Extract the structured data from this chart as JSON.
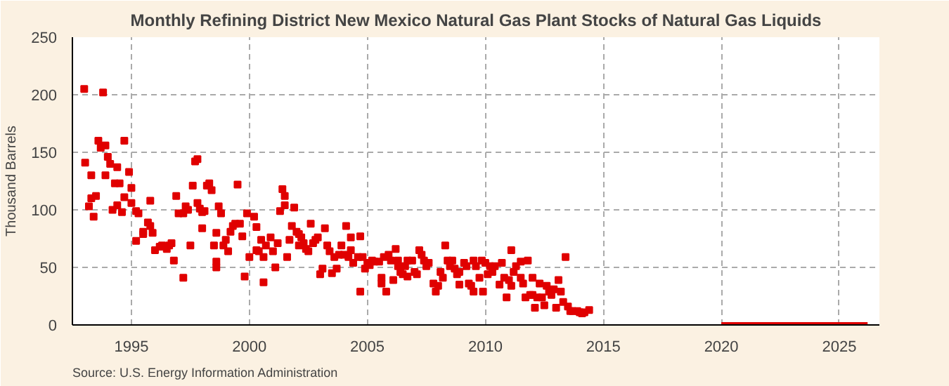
{
  "chart_data": {
    "type": "scatter",
    "title": "Monthly Refining District New Mexico Natural Gas Plant Stocks of Natural Gas Liquids",
    "ylabel": "Thousand Barrels",
    "annotations": [
      "Source: U.S. Energy Information Administration"
    ],
    "grid": true,
    "xlim": [
      1992.5,
      2026.7
    ],
    "xticks": [
      1995,
      2000,
      2005,
      2010,
      2015,
      2020,
      2025
    ],
    "ylim": [
      0,
      250
    ],
    "yticks": [
      0,
      50,
      100,
      150,
      200,
      250
    ],
    "series": [
      {
        "marker": "square",
        "color": "#e00000",
        "x": [
          1993.0,
          1993.04,
          1993.2,
          1993.3,
          1993.3,
          1993.4,
          1993.5,
          1993.6,
          1993.7,
          1993.8,
          1993.9,
          1993.9,
          1994.0,
          1994.1,
          1994.2,
          1994.3,
          1994.4,
          1994.4,
          1994.5,
          1994.6,
          1994.7,
          1994.7,
          1994.9,
          1995.0,
          1995.0,
          1995.2,
          1995.2,
          1995.3,
          1995.5,
          1995.5,
          1995.7,
          1995.8,
          1995.8,
          1995.9,
          1996.0,
          1996.2,
          1996.3,
          1996.5,
          1996.6,
          1996.7,
          1996.8,
          1996.9,
          1997.0,
          1997.2,
          1997.2,
          1997.3,
          1997.4,
          1997.5,
          1997.6,
          1997.7,
          1997.8,
          1997.8,
          1997.9,
          1998.0,
          1998.0,
          1998.1,
          1998.2,
          1998.3,
          1998.4,
          1998.5,
          1998.6,
          1998.6,
          1998.6,
          1998.7,
          1998.8,
          1998.9,
          1999.0,
          1999.1,
          1999.2,
          1999.3,
          1999.4,
          1999.5,
          1999.6,
          1999.7,
          1999.8,
          1999.9,
          2000.0,
          2000.2,
          2000.3,
          2000.3,
          2000.4,
          2000.5,
          2000.6,
          2000.6,
          2000.7,
          2000.9,
          2001.0,
          2001.1,
          2001.2,
          2001.3,
          2001.4,
          2001.5,
          2001.5,
          2001.6,
          2001.7,
          2001.8,
          2001.9,
          2002.0,
          2002.1,
          2002.1,
          2002.2,
          2002.3,
          2002.4,
          2002.5,
          2002.6,
          2002.7,
          2002.8,
          2002.9,
          2003.0,
          2003.1,
          2003.2,
          2003.3,
          2003.4,
          2003.5,
          2003.6,
          2003.7,
          2003.8,
          2003.9,
          2004.0,
          2004.1,
          2004.2,
          2004.3,
          2004.3,
          2004.4,
          2004.6,
          2004.7,
          2004.7,
          2004.8,
          2004.9,
          2005.0,
          2005.1,
          2005.2,
          2005.3,
          2005.5,
          2005.6,
          2005.6,
          2005.7,
          2005.8,
          2005.9,
          2006.0,
          2006.1,
          2006.2,
          2006.3,
          2006.3,
          2006.4,
          2006.5,
          2006.6,
          2006.7,
          2006.7,
          2006.9,
          2007.0,
          2007.1,
          2007.2,
          2007.3,
          2007.4,
          2007.5,
          2007.6,
          2007.8,
          2007.9,
          2008.0,
          2008.1,
          2008.2,
          2008.3,
          2008.4,
          2008.5,
          2008.6,
          2008.7,
          2008.8,
          2008.9,
          2008.9,
          2009.1,
          2009.2,
          2009.3,
          2009.4,
          2009.5,
          2009.5,
          2009.6,
          2009.75,
          2009.85,
          2009.9,
          2010.0,
          2010.1,
          2010.2,
          2010.3,
          2010.4,
          2010.6,
          2010.7,
          2010.8,
          2010.9,
          2011.0,
          2011.1,
          2011.1,
          2011.2,
          2011.3,
          2011.5,
          2011.5,
          2011.6,
          2011.7,
          2011.8,
          2011.9,
          2012.0,
          2012.0,
          2012.1,
          2012.2,
          2012.3,
          2012.4,
          2012.5,
          2012.6,
          2012.7,
          2012.8,
          2012.9,
          2013.0,
          2013.1,
          2013.2,
          2013.3,
          2013.4,
          2013.5,
          2013.6,
          2013.7,
          2013.9,
          2014.0,
          2014.1,
          2014.2,
          2014.4
        ],
        "values": [
          205,
          141,
          103,
          110,
          130,
          94,
          112,
          160,
          154,
          202,
          156,
          130,
          146,
          140,
          100,
          123,
          137,
          104,
          123,
          98,
          111,
          160,
          133,
          119,
          106,
          73,
          99,
          97,
          81,
          79,
          89,
          108,
          86,
          80,
          65,
          68,
          69,
          66,
          69,
          71,
          56,
          112,
          97,
          41,
          97,
          103,
          100,
          69,
          121,
          142,
          144,
          106,
          101,
          98,
          84,
          99,
          121,
          123,
          117,
          69,
          55,
          80,
          50,
          103,
          97,
          69,
          74,
          64,
          81,
          86,
          88,
          122,
          88,
          77,
          42,
          97,
          59,
          94,
          85,
          65,
          64,
          74,
          37,
          59,
          69,
          76,
          64,
          50,
          71,
          99,
          118,
          112,
          104,
          59,
          74,
          86,
          102,
          81,
          69,
          79,
          76,
          71,
          66,
          64,
          88,
          71,
          74,
          76,
          44,
          49,
          84,
          69,
          64,
          45,
          59,
          49,
          61,
          69,
          61,
          86,
          59,
          65,
          76,
          54,
          59,
          29,
          77,
          59,
          49,
          54,
          52,
          56,
          55,
          55,
          36,
          41,
          59,
          29,
          61,
          56,
          39,
          66,
          51,
          56,
          46,
          44,
          51,
          56,
          42,
          56,
          46,
          44,
          65,
          61,
          56,
          51,
          54,
          36,
          29,
          34,
          46,
          41,
          69,
          56,
          51,
          56,
          49,
          44,
          35,
          46,
          54,
          51,
          36,
          34,
          56,
          29,
          51,
          41,
          56,
          29,
          54,
          44,
          51,
          46,
          51,
          35,
          54,
          41,
          24,
          39,
          34,
          65,
          46,
          51,
          41,
          55,
          36,
          24,
          56,
          26,
          41,
          26,
          15,
          24,
          36,
          24,
          17,
          34,
          29,
          26,
          31,
          15,
          39,
          29,
          20,
          59,
          16,
          12,
          12,
          12,
          11,
          10,
          11,
          13
        ]
      },
      {
        "type": "line",
        "marker": "none",
        "color": "#e00000",
        "x": [
          2020.0,
          2020.1,
          2020.2,
          2020.3,
          2020.4,
          2020.5,
          2020.6,
          2020.7,
          2020.8,
          2020.9,
          2021.0,
          2021.1,
          2021.2,
          2021.3,
          2021.4,
          2021.5,
          2021.6,
          2021.7,
          2021.8,
          2021.9,
          2022.0,
          2022.1,
          2022.2,
          2022.3,
          2022.4,
          2022.5,
          2022.6,
          2022.7,
          2022.8,
          2022.9,
          2023.0,
          2023.1,
          2023.2,
          2023.3,
          2023.4,
          2023.5,
          2023.6,
          2023.7,
          2023.8,
          2023.9,
          2024.0,
          2024.1,
          2024.2,
          2024.3,
          2024.4,
          2024.5,
          2024.6,
          2024.7,
          2024.8,
          2024.9,
          2025.0,
          2025.1,
          2025.2,
          2025.3,
          2025.4,
          2025.5,
          2025.6,
          2025.7,
          2025.8,
          2025.9,
          2026.0,
          2026.1,
          2026.2
        ],
        "values": [
          0,
          0,
          0,
          0,
          0,
          0,
          0,
          0,
          0,
          0,
          0,
          0,
          0,
          0,
          0,
          0,
          0,
          0,
          0,
          0,
          0,
          0,
          0,
          0,
          0,
          0,
          0,
          0,
          0,
          0,
          0,
          0,
          0,
          0,
          0,
          0,
          0,
          0,
          0,
          0,
          0,
          0,
          0,
          0,
          0,
          0,
          0,
          0,
          0,
          0,
          0,
          0,
          0,
          0,
          0,
          0,
          0,
          0,
          0,
          0,
          0,
          0,
          0
        ]
      }
    ]
  }
}
